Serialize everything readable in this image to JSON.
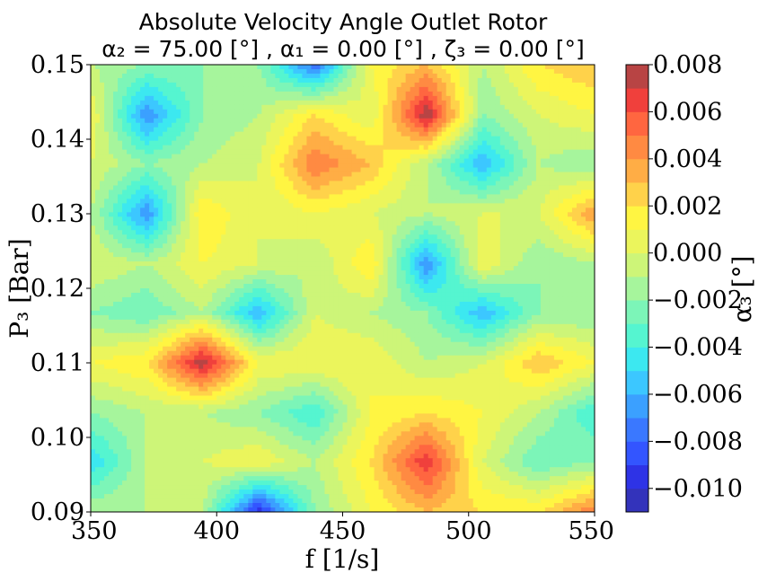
{
  "chart_data": {
    "type": "heatmap",
    "title": "Absolute Velocity Angle Outlet Rotor",
    "subtitle": "α₂ = 75.00 [°] , α₁ = 0.00 [°] , ζ₃ = 0.00 [°]",
    "xlabel": "f [1/s]",
    "ylabel": "P₃ [Bar]",
    "colorbar_label": "α₃ [°]",
    "xlim": [
      350,
      550
    ],
    "ylim": [
      0.09,
      0.15
    ],
    "xticks": [
      "350",
      "400",
      "450",
      "500",
      "550"
    ],
    "yticks": [
      "0.09",
      "0.10",
      "0.11",
      "0.12",
      "0.13",
      "0.14",
      "0.15"
    ],
    "colorbar_ticks": [
      "0.008",
      "0.006",
      "0.004",
      "0.002",
      "0.000",
      "−0.002",
      "−0.004",
      "−0.006",
      "−0.008",
      "−0.010"
    ],
    "levels": [
      -0.011,
      -0.01,
      -0.009,
      -0.008,
      -0.007,
      -0.006,
      -0.005,
      -0.004,
      -0.003,
      -0.002,
      -0.001,
      0.0,
      0.001,
      0.002,
      0.003,
      0.004,
      0.005,
      0.006,
      0.007,
      0.008
    ],
    "colors": [
      "#3333bb",
      "#2e33e6",
      "#3355ff",
      "#3a78ff",
      "#3ba0ff",
      "#3cc7ff",
      "#3ce8f0",
      "#55f5d0",
      "#7cf5b8",
      "#a6f59c",
      "#cdf578",
      "#ebf55c",
      "#fff542",
      "#ffd24a",
      "#ffad45",
      "#ff8a42",
      "#ff6640",
      "#f0403c",
      "#b84444"
    ],
    "x": [
      350,
      372.2,
      394.4,
      416.7,
      438.9,
      461.1,
      483.3,
      505.6,
      527.8,
      550
    ],
    "y": [
      0.09,
      0.0967,
      0.1033,
      0.11,
      0.1167,
      0.1233,
      0.13,
      0.1367,
      0.1433,
      0.15
    ],
    "z": [
      [
        -0.001,
        -0.001,
        -0.001,
        -0.01,
        -0.002,
        0.001,
        0.003,
        0.002,
        0.002,
        0.005
      ],
      [
        -0.005,
        -0.001,
        0.0,
        0.001,
        -0.001,
        0.002,
        0.007,
        0.0,
        -0.003,
        -0.002
      ],
      [
        -0.002,
        -0.001,
        -0.001,
        -0.002,
        -0.004,
        0.001,
        0.002,
        0.001,
        -0.001,
        -0.004
      ],
      [
        0.001,
        0.002,
        0.008,
        0.001,
        0.001,
        0.001,
        -0.001,
        0.0,
        0.003,
        0.001
      ],
      [
        -0.002,
        -0.003,
        -0.001,
        -0.006,
        0.0,
        -0.001,
        -0.002,
        -0.006,
        -0.002,
        -0.002
      ],
      [
        0.0,
        -0.001,
        0.001,
        0.0,
        -0.001,
        0.002,
        -0.007,
        0.001,
        -0.002,
        -0.001
      ],
      [
        -0.001,
        -0.007,
        0.002,
        0.0,
        0.001,
        0.0,
        -0.001,
        0.0,
        0.0,
        0.004
      ],
      [
        0.0,
        -0.002,
        -0.001,
        0.0,
        0.005,
        0.003,
        -0.001,
        -0.006,
        -0.001,
        -0.002
      ],
      [
        0.001,
        -0.007,
        -0.002,
        -0.001,
        0.002,
        0.0,
        0.008,
        -0.002,
        0.0,
        0.001
      ],
      [
        -0.001,
        -0.002,
        -0.002,
        -0.002,
        -0.008,
        0.001,
        0.003,
        -0.001,
        0.002,
        0.003
      ]
    ]
  }
}
